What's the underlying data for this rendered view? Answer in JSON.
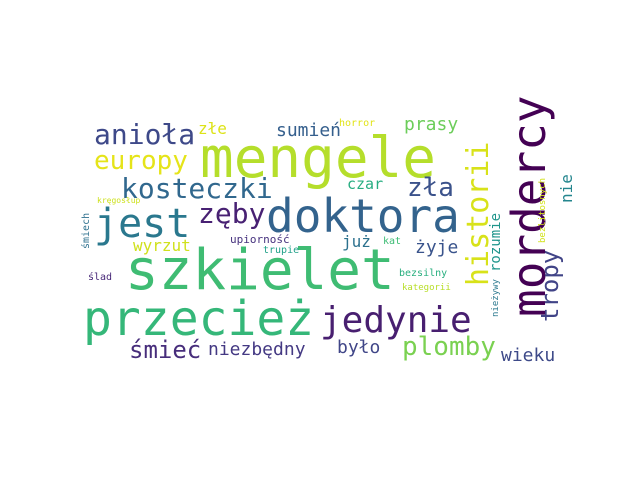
{
  "words": [
    {
      "id": "mengele",
      "text": "mengele",
      "color": "#b5de2b",
      "orientation": "horizontal"
    },
    {
      "id": "szkielet",
      "text": "szkielet",
      "color": "#3fbc73",
      "orientation": "horizontal"
    },
    {
      "id": "doktora",
      "text": "doktora",
      "color": "#33638d",
      "orientation": "horizontal"
    },
    {
      "id": "przeciez",
      "text": "przecież",
      "color": "#35b779",
      "orientation": "horizontal"
    },
    {
      "id": "mordercy",
      "text": "mordercy",
      "color": "#440154",
      "orientation": "vertical"
    },
    {
      "id": "jedynie",
      "text": "jedynie",
      "color": "#481f70",
      "orientation": "horizontal"
    },
    {
      "id": "historii",
      "text": "historii",
      "color": "#d8e219",
      "orientation": "vertical"
    },
    {
      "id": "jest",
      "text": "jest",
      "color": "#2a788e",
      "orientation": "horizontal"
    },
    {
      "id": "aniola",
      "text": "anioła",
      "color": "#3e4989",
      "orientation": "horizontal"
    },
    {
      "id": "kosteczki",
      "text": "kosteczki",
      "color": "#31688e",
      "orientation": "horizontal"
    },
    {
      "id": "europy",
      "text": "europy",
      "color": "#e5e419",
      "orientation": "horizontal"
    },
    {
      "id": "zla",
      "text": "zła",
      "color": "#3b528b",
      "orientation": "horizontal"
    },
    {
      "id": "zeby",
      "text": "zęby",
      "color": "#482173",
      "orientation": "horizontal"
    },
    {
      "id": "plomby",
      "text": "plomby",
      "color": "#7ad151",
      "orientation": "horizontal"
    },
    {
      "id": "tropy",
      "text": "tropy",
      "color": "#414487",
      "orientation": "vertical"
    },
    {
      "id": "smiec",
      "text": "śmieć",
      "color": "#472d7b",
      "orientation": "horizontal"
    },
    {
      "id": "niezbedny",
      "text": "niezbędny",
      "color": "#443983",
      "orientation": "horizontal"
    },
    {
      "id": "bylo",
      "text": "było",
      "color": "#404688",
      "orientation": "horizontal"
    },
    {
      "id": "prasy",
      "text": "prasy",
      "color": "#6ccd5a",
      "orientation": "horizontal"
    },
    {
      "id": "sumien",
      "text": "sumień",
      "color": "#355f8d",
      "orientation": "horizontal"
    },
    {
      "id": "wieku",
      "text": "wieku",
      "color": "#3e4a89",
      "orientation": "horizontal"
    },
    {
      "id": "zle",
      "text": "złe",
      "color": "#dde318",
      "orientation": "horizontal"
    },
    {
      "id": "wyrzut",
      "text": "wyrzut",
      "color": "#d0e11c",
      "orientation": "horizontal"
    },
    {
      "id": "czar",
      "text": "czar",
      "color": "#27ad81",
      "orientation": "horizontal"
    },
    {
      "id": "juz",
      "text": "już",
      "color": "#2c718e",
      "orientation": "horizontal"
    },
    {
      "id": "zyje",
      "text": "żyje",
      "color": "#3a548c",
      "orientation": "horizontal"
    },
    {
      "id": "nie",
      "text": "nie",
      "color": "#24868e",
      "orientation": "vertical"
    },
    {
      "id": "rozumie",
      "text": "rozumie",
      "color": "#1f958b",
      "orientation": "vertical"
    },
    {
      "id": "upiornosc",
      "text": "upiorność",
      "color": "#46327e",
      "orientation": "horizontal"
    },
    {
      "id": "horror",
      "text": "horror",
      "color": "#e2e418",
      "orientation": "horizontal"
    },
    {
      "id": "kat",
      "text": "kat",
      "color": "#3dbc74",
      "orientation": "horizontal"
    },
    {
      "id": "trupie",
      "text": "trupie",
      "color": "#1fa088",
      "orientation": "horizontal"
    },
    {
      "id": "bezsilny",
      "text": "bezsilny",
      "color": "#29af7f",
      "orientation": "horizontal"
    },
    {
      "id": "kategorii",
      "text": "kategorii",
      "color": "#b8de29",
      "orientation": "horizontal"
    },
    {
      "id": "slad",
      "text": "ślad",
      "color": "#482878",
      "orientation": "horizontal"
    },
    {
      "id": "smiech",
      "text": "śmiech",
      "color": "#2d708e",
      "orientation": "vertical"
    },
    {
      "id": "kregoslup",
      "text": "kręgosłup",
      "color": "#cde11d",
      "orientation": "horizontal"
    },
    {
      "id": "bezlitosnych",
      "text": "bezlitosnych",
      "color": "#d2e21b",
      "orientation": "vertical"
    },
    {
      "id": "niezywy",
      "text": "nieżywy",
      "color": "#2a788e",
      "orientation": "vertical"
    }
  ]
}
